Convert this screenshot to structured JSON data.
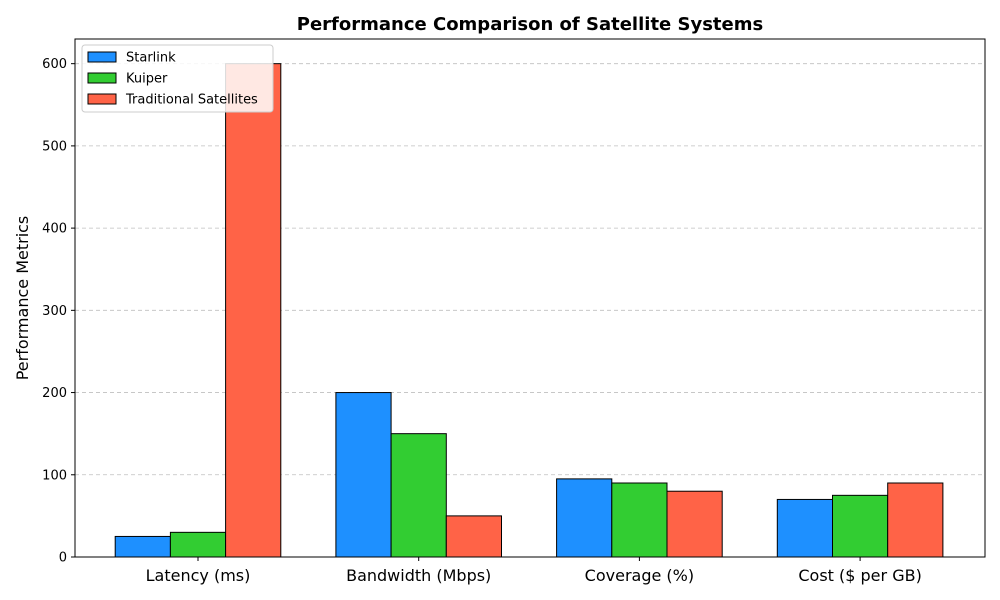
{
  "chart_data": {
    "type": "bar",
    "title": "Performance Comparison of Satellite Systems",
    "xlabel": "",
    "ylabel": "Performance Metrics",
    "categories": [
      "Latency (ms)",
      "Bandwidth (Mbps)",
      "Coverage (%)",
      "Cost ($ per GB)"
    ],
    "series": [
      {
        "name": "Starlink",
        "color": "#1e90ff",
        "values": [
          25,
          200,
          95,
          70
        ]
      },
      {
        "name": "Kuiper",
        "color": "#32cd32",
        "values": [
          30,
          150,
          90,
          75
        ]
      },
      {
        "name": "Traditional Satellites",
        "color": "#ff6347",
        "values": [
          600,
          50,
          80,
          90
        ]
      }
    ],
    "ylim": [
      0,
      630
    ],
    "yticks": [
      0,
      100,
      200,
      300,
      400,
      500,
      600
    ],
    "grid": "y-dashed",
    "legend_position": "top-left"
  }
}
